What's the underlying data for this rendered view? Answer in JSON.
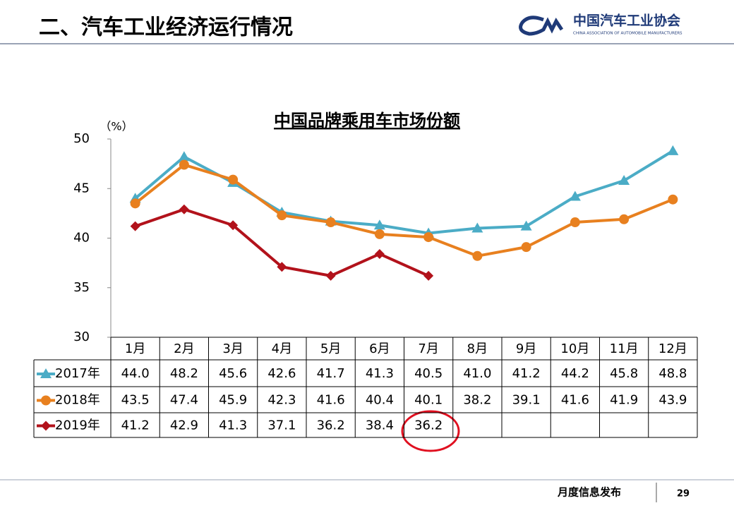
{
  "header": {
    "title": "二、汽车工业经济运行情况",
    "logo_name": "中国汽车工业协会",
    "logo_subtitle": "CHINA ASSOCIATION OF AUTOMOBILE MANUFACTURERS"
  },
  "footer": {
    "text": "月度信息发布",
    "page": "29"
  },
  "chart_data": {
    "type": "line",
    "title": "中国品牌乘用车市场份额",
    "y_unit": "（%）",
    "categories": [
      "1月",
      "2月",
      "3月",
      "4月",
      "5月",
      "6月",
      "7月",
      "8月",
      "9月",
      "10月",
      "11月",
      "12月"
    ],
    "ylim": [
      30,
      50
    ],
    "yticks": [
      30,
      35,
      40,
      45,
      50
    ],
    "series": [
      {
        "name": "2017年",
        "color": "#4bacc6",
        "marker": "triangle",
        "values": [
          44.0,
          48.2,
          45.6,
          42.6,
          41.7,
          41.3,
          40.5,
          41.0,
          41.2,
          44.2,
          45.8,
          48.8
        ],
        "value_labels": [
          "44.0",
          "48.2",
          "45.6",
          "42.6",
          "41.7",
          "41.3",
          "40.5",
          "41.0",
          "41.2",
          "44.2",
          "45.8",
          "48.8"
        ]
      },
      {
        "name": "2018年",
        "color": "#e8801f",
        "marker": "circle",
        "values": [
          43.5,
          47.4,
          45.9,
          42.3,
          41.6,
          40.4,
          40.1,
          38.2,
          39.1,
          41.6,
          41.9,
          43.9
        ],
        "value_labels": [
          "43.5",
          "47.4",
          "45.9",
          "42.3",
          "41.6",
          "40.4",
          "40.1",
          "38.2",
          "39.1",
          "41.6",
          "41.9",
          "43.9"
        ]
      },
      {
        "name": "2019年",
        "color": "#b2121b",
        "marker": "diamond",
        "values": [
          41.2,
          42.9,
          41.3,
          37.1,
          36.2,
          38.4,
          36.2,
          null,
          null,
          null,
          null,
          null
        ],
        "value_labels": [
          "41.2",
          "42.9",
          "41.3",
          "37.1",
          "36.2",
          "38.4",
          "36.2",
          null,
          null,
          null,
          null,
          null
        ]
      }
    ]
  }
}
